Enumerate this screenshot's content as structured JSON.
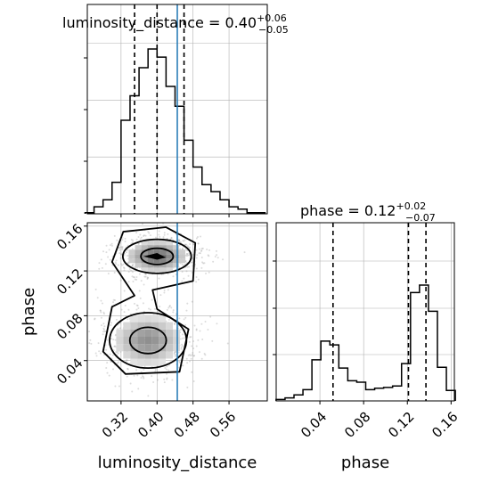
{
  "colors": {
    "truth": "#1f77b4",
    "hist": "#000000",
    "grid": "#b0b0b0",
    "scatter": "#9a9a9a"
  },
  "chart_data": [
    {
      "type": "histogram",
      "panel": "luminosity_distance marginal",
      "title": {
        "prefix": "luminosity_distance = ",
        "value": "0.40",
        "plus": "+0.06",
        "minus": "−0.05"
      },
      "xlim": [
        0.245,
        0.645
      ],
      "bins_x": [
        0.25,
        0.27,
        0.29,
        0.31,
        0.33,
        0.35,
        0.37,
        0.39,
        0.41,
        0.43,
        0.45,
        0.47,
        0.49,
        0.51,
        0.53,
        0.55,
        0.57,
        0.59,
        0.61,
        0.63
      ],
      "counts": [
        1,
        6,
        12,
        27,
        80,
        101,
        125,
        141,
        134,
        109,
        92,
        63,
        40,
        25,
        19,
        12,
        6,
        4,
        1,
        1
      ],
      "quantiles": [
        0.35,
        0.4,
        0.46
      ],
      "truth": 0.445,
      "grid": true
    },
    {
      "type": "histogram",
      "panel": "phase marginal",
      "title": {
        "prefix": "phase = ",
        "value": "0.12",
        "plus": "+0.02",
        "minus": "−0.07"
      },
      "xlim": [
        0.0,
        0.163
      ],
      "xticks": [
        "0.04",
        "0.08",
        "0.12",
        "0.16"
      ],
      "bins_x": [
        0.004,
        0.0122,
        0.0204,
        0.0286,
        0.0368,
        0.045,
        0.0532,
        0.0614,
        0.0696,
        0.0778,
        0.086,
        0.0942,
        0.1024,
        0.1106,
        0.1188,
        0.127,
        0.1352,
        0.1434,
        0.1516,
        0.1598
      ],
      "counts": [
        2,
        4,
        8,
        15,
        55,
        80,
        75,
        44,
        27,
        25,
        15,
        17,
        18,
        20,
        50,
        145,
        155,
        120,
        45,
        14
      ],
      "quantiles": [
        0.052,
        0.121,
        0.137
      ],
      "xlabel": "phase",
      "grid": true
    },
    {
      "type": "2d-density",
      "panel": "luminosity_distance vs phase",
      "x": "luminosity_distance",
      "y": "phase",
      "xlabel": "luminosity_distance",
      "ylabel": "phase",
      "xlim": [
        0.245,
        0.645
      ],
      "ylim": [
        0.004,
        0.163
      ],
      "xticks": [
        "0.32",
        "0.40",
        "0.48",
        "0.56"
      ],
      "yticks": [
        "0.04",
        "0.08",
        "0.12",
        "0.16"
      ],
      "modes": [
        {
          "x": 0.4,
          "y": 0.133,
          "sx": 0.04,
          "sy": 0.008
        },
        {
          "x": 0.38,
          "y": 0.058,
          "sx": 0.045,
          "sy": 0.013
        }
      ],
      "truth_x": 0.445,
      "grid": true
    }
  ]
}
